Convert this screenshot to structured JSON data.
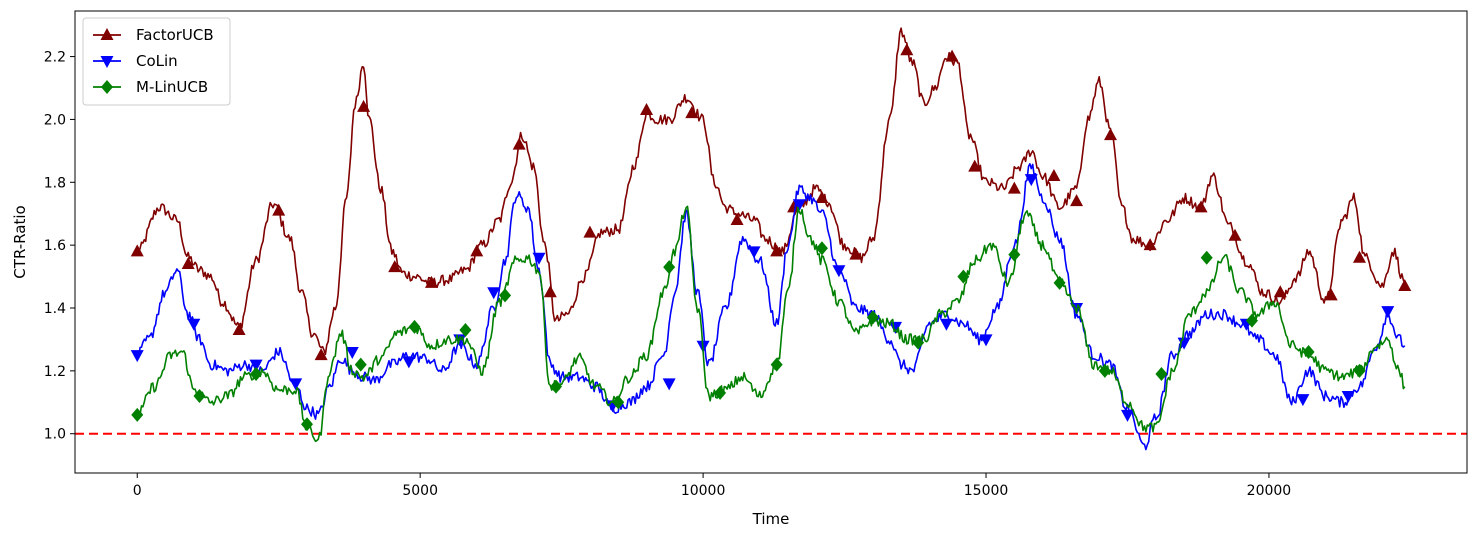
{
  "chart_data": {
    "type": "line",
    "title": "",
    "xlabel": "Time",
    "ylabel": "CTR-Ratio",
    "xlim": [
      -1100,
      23500
    ],
    "ylim": [
      0.875,
      2.345
    ],
    "xticks": [
      0,
      5000,
      10000,
      15000,
      20000
    ],
    "yticks": [
      1.0,
      1.2,
      1.4,
      1.6,
      1.8,
      2.0,
      2.2
    ],
    "ytick_labels": [
      "1.0",
      "1.2",
      "1.4",
      "1.6",
      "1.8",
      "2.0",
      "2.2"
    ],
    "grid": false,
    "legend_position": "top-left",
    "reference_line": {
      "y": 1.0,
      "color": "#ff0000",
      "style": "dashed"
    },
    "series": [
      {
        "name": "FactorUCB",
        "color": "#800000",
        "marker": "triangle-up",
        "x": [
          0,
          400,
          700,
          900,
          1100,
          1300,
          1500,
          1800,
          2100,
          2400,
          2700,
          2900,
          3100,
          3300,
          3500,
          3700,
          3850,
          4000,
          4100,
          4300,
          4500,
          4700,
          4900,
          5200,
          5500,
          5800,
          6100,
          6400,
          6600,
          6800,
          7000,
          7200,
          7400,
          7600,
          7900,
          8200,
          8500,
          8800,
          9000,
          9200,
          9400,
          9700,
          10000,
          10200,
          10400,
          10600,
          10900,
          11100,
          11400,
          11700,
          12000,
          12200,
          12500,
          12800,
          13000,
          13300,
          13500,
          13700,
          13900,
          14100,
          14300,
          14500,
          14700,
          15000,
          15300,
          15600,
          15800,
          16000,
          16300,
          16600,
          16800,
          17000,
          17200,
          17400,
          17600,
          17900,
          18200,
          18500,
          18800,
          19000,
          19300,
          19600,
          19900,
          20200,
          20500,
          20700,
          21000,
          21300,
          21500,
          21700,
          22000,
          22200,
          22400
        ],
        "y": [
          1.58,
          1.72,
          1.68,
          1.56,
          1.52,
          1.5,
          1.42,
          1.34,
          1.55,
          1.73,
          1.62,
          1.45,
          1.32,
          1.26,
          1.4,
          1.75,
          2.05,
          2.18,
          2.0,
          1.78,
          1.58,
          1.51,
          1.5,
          1.48,
          1.49,
          1.52,
          1.6,
          1.68,
          1.8,
          1.95,
          1.85,
          1.6,
          1.36,
          1.38,
          1.5,
          1.64,
          1.65,
          1.86,
          2.02,
          2.0,
          2.0,
          2.07,
          2.0,
          1.8,
          1.72,
          1.7,
          1.68,
          1.62,
          1.58,
          1.72,
          1.78,
          1.74,
          1.6,
          1.56,
          1.62,
          2.0,
          2.28,
          2.18,
          2.05,
          2.1,
          2.2,
          2.18,
          1.95,
          1.8,
          1.78,
          1.85,
          1.9,
          1.82,
          1.72,
          1.78,
          2.0,
          2.12,
          1.96,
          1.72,
          1.62,
          1.6,
          1.68,
          1.75,
          1.72,
          1.82,
          1.66,
          1.55,
          1.45,
          1.42,
          1.5,
          1.58,
          1.42,
          1.68,
          1.75,
          1.56,
          1.47,
          1.58,
          1.48
        ],
        "marker_x": [
          0,
          900,
          1800,
          2500,
          3250,
          4000,
          4550,
          5200,
          6000,
          6750,
          7300,
          8000,
          9000,
          9800,
          10600,
          11300,
          11600,
          12100,
          12700,
          13600,
          14400,
          14800,
          15500,
          16200,
          16600,
          17200,
          17900,
          18800,
          19400,
          20200,
          21100,
          21600,
          22400
        ],
        "marker_y": [
          1.58,
          1.54,
          1.33,
          1.71,
          1.25,
          2.04,
          1.53,
          1.48,
          1.58,
          1.92,
          1.45,
          1.64,
          2.03,
          2.02,
          1.68,
          1.58,
          1.72,
          1.75,
          1.57,
          2.22,
          2.2,
          1.85,
          1.78,
          1.82,
          1.74,
          1.95,
          1.6,
          1.72,
          1.63,
          1.45,
          1.44,
          1.56,
          1.47
        ]
      },
      {
        "name": "CoLin",
        "color": "#0000ff",
        "marker": "triangle-down",
        "x": [
          0,
          200,
          500,
          700,
          900,
          1100,
          1300,
          1600,
          1900,
          2200,
          2500,
          2800,
          3000,
          3200,
          3400,
          3600,
          3800,
          4000,
          4200,
          4500,
          4800,
          5100,
          5400,
          5700,
          6000,
          6300,
          6500,
          6700,
          6900,
          7100,
          7300,
          7500,
          7800,
          8100,
          8400,
          8700,
          9000,
          9300,
          9500,
          9700,
          9900,
          10100,
          10400,
          10700,
          11000,
          11300,
          11500,
          11700,
          11900,
          12100,
          12400,
          12700,
          13000,
          13300,
          13500,
          13700,
          14000,
          14300,
          14600,
          14900,
          15200,
          15500,
          15800,
          16000,
          16300,
          16600,
          16900,
          17200,
          17500,
          17800,
          18000,
          18300,
          18600,
          18900,
          19200,
          19500,
          19800,
          20100,
          20400,
          20700,
          21000,
          21300,
          21600,
          21900,
          22100,
          22300,
          22400
        ],
        "y": [
          1.25,
          1.3,
          1.45,
          1.52,
          1.38,
          1.3,
          1.22,
          1.2,
          1.22,
          1.2,
          1.26,
          1.15,
          1.08,
          1.06,
          1.15,
          1.24,
          1.2,
          1.18,
          1.17,
          1.22,
          1.25,
          1.24,
          1.2,
          1.28,
          1.22,
          1.4,
          1.55,
          1.76,
          1.72,
          1.52,
          1.22,
          1.18,
          1.18,
          1.15,
          1.08,
          1.1,
          1.15,
          1.25,
          1.45,
          1.7,
          1.45,
          1.22,
          1.4,
          1.62,
          1.55,
          1.35,
          1.6,
          1.78,
          1.75,
          1.7,
          1.52,
          1.4,
          1.38,
          1.3,
          1.22,
          1.2,
          1.35,
          1.38,
          1.35,
          1.3,
          1.4,
          1.6,
          1.85,
          1.75,
          1.62,
          1.38,
          1.25,
          1.22,
          1.08,
          0.96,
          1.05,
          1.25,
          1.32,
          1.38,
          1.38,
          1.35,
          1.3,
          1.25,
          1.1,
          1.2,
          1.12,
          1.1,
          1.15,
          1.28,
          1.38,
          1.3,
          1.28
        ],
        "marker_x": [
          0,
          1000,
          2100,
          2800,
          3800,
          4800,
          5700,
          6300,
          7100,
          8400,
          9400,
          10000,
          10900,
          11700,
          12400,
          13400,
          14300,
          15000,
          15800,
          16600,
          17500,
          18500,
          19600,
          20600,
          21400,
          22100
        ],
        "marker_y": [
          1.25,
          1.35,
          1.22,
          1.16,
          1.26,
          1.23,
          1.3,
          1.45,
          1.56,
          1.09,
          1.16,
          1.28,
          1.58,
          1.73,
          1.52,
          1.34,
          1.35,
          1.3,
          1.81,
          1.4,
          1.06,
          1.29,
          1.35,
          1.11,
          1.12,
          1.39
        ]
      },
      {
        "name": "M-LinUCB",
        "color": "#008000",
        "marker": "diamond",
        "x": [
          0,
          300,
          600,
          800,
          1000,
          1300,
          1600,
          1900,
          2200,
          2500,
          2800,
          3000,
          3200,
          3400,
          3600,
          3800,
          4000,
          4300,
          4600,
          4900,
          5200,
          5500,
          5800,
          6100,
          6400,
          6700,
          6900,
          7100,
          7300,
          7500,
          7800,
          8100,
          8400,
          8700,
          9000,
          9300,
          9500,
          9700,
          9900,
          10100,
          10400,
          10700,
          11000,
          11300,
          11500,
          11700,
          11900,
          12100,
          12400,
          12700,
          13000,
          13300,
          13600,
          13900,
          14200,
          14500,
          14800,
          15100,
          15400,
          15700,
          16000,
          16300,
          16600,
          16900,
          17200,
          17500,
          17800,
          18000,
          18300,
          18600,
          18900,
          19200,
          19500,
          19800,
          20100,
          20400,
          20700,
          21000,
          21300,
          21600,
          21900,
          22100,
          22300,
          22400
        ],
        "y": [
          1.06,
          1.15,
          1.25,
          1.26,
          1.14,
          1.1,
          1.12,
          1.18,
          1.2,
          1.14,
          1.14,
          1.02,
          0.98,
          1.2,
          1.32,
          1.2,
          1.18,
          1.24,
          1.32,
          1.34,
          1.28,
          1.3,
          1.3,
          1.2,
          1.42,
          1.55,
          1.56,
          1.52,
          1.15,
          1.16,
          1.24,
          1.15,
          1.1,
          1.18,
          1.25,
          1.45,
          1.58,
          1.72,
          1.4,
          1.12,
          1.14,
          1.18,
          1.12,
          1.22,
          1.45,
          1.72,
          1.62,
          1.55,
          1.42,
          1.32,
          1.36,
          1.35,
          1.3,
          1.3,
          1.38,
          1.42,
          1.55,
          1.6,
          1.48,
          1.7,
          1.6,
          1.48,
          1.4,
          1.22,
          1.2,
          1.1,
          1.02,
          1.02,
          1.2,
          1.38,
          1.45,
          1.56,
          1.45,
          1.38,
          1.42,
          1.28,
          1.25,
          1.2,
          1.18,
          1.2,
          1.28,
          1.3,
          1.2,
          1.15
        ],
        "marker_x": [
          0,
          1100,
          2100,
          3000,
          3950,
          4900,
          5800,
          6500,
          7400,
          8500,
          9400,
          10300,
          11300,
          12100,
          13000,
          13800,
          14600,
          15500,
          16300,
          17100,
          18100,
          18900,
          19700,
          20700,
          21600
        ],
        "marker_y": [
          1.06,
          1.12,
          1.19,
          1.03,
          1.22,
          1.34,
          1.33,
          1.44,
          1.15,
          1.1,
          1.53,
          1.13,
          1.22,
          1.59,
          1.37,
          1.29,
          1.5,
          1.57,
          1.48,
          1.2,
          1.19,
          1.56,
          1.36,
          1.26,
          1.2
        ]
      }
    ]
  }
}
